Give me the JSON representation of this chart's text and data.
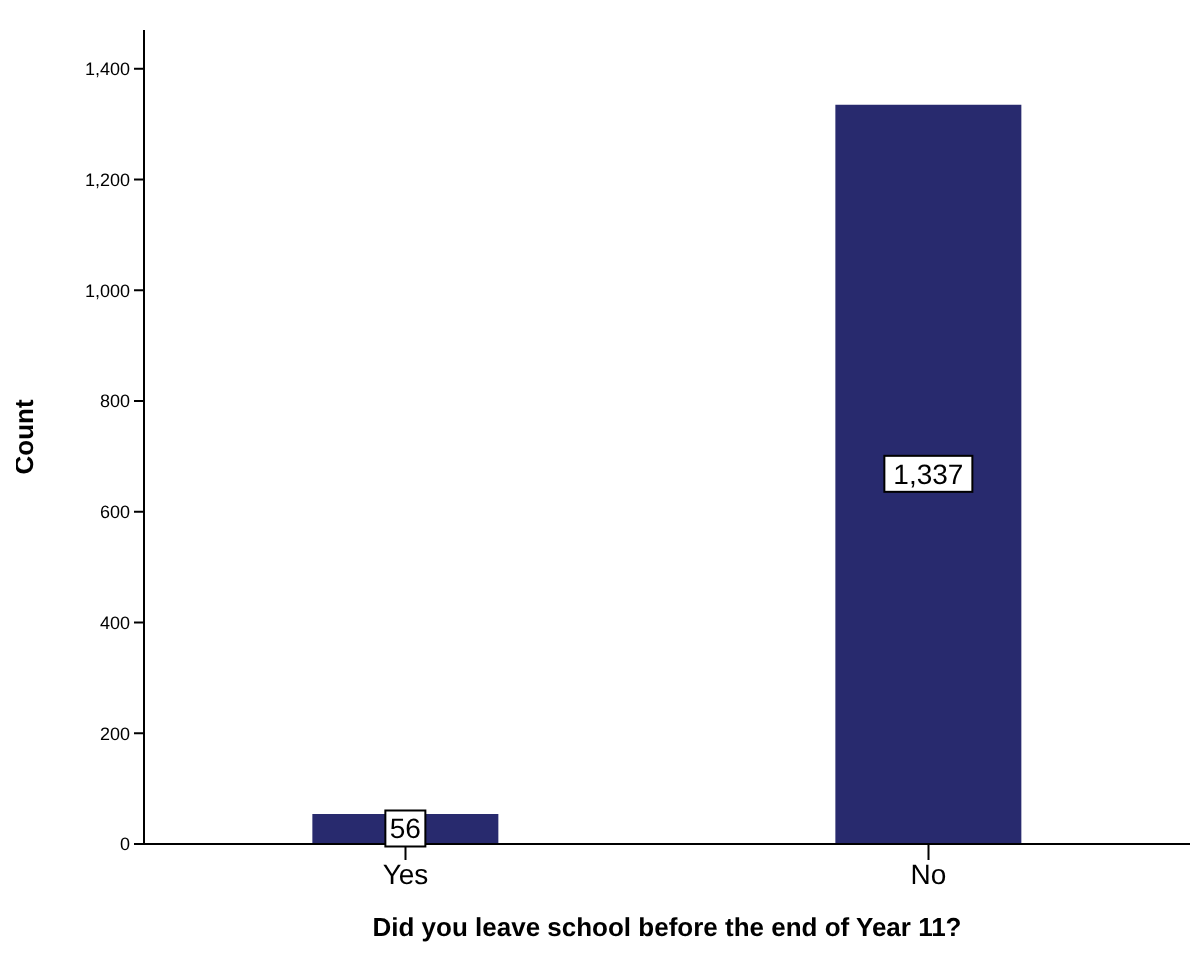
{
  "chart_data": {
    "type": "bar",
    "xlabel": "Did you leave school before the end of Year 11?",
    "ylabel": "Count",
    "categories": [
      "Yes",
      "No"
    ],
    "values": [
      56,
      1337
    ],
    "color": "#282a6e",
    "value_labels": [
      "56",
      "1,337"
    ],
    "ylim": [
      0,
      1470
    ],
    "yticks": [
      0,
      200,
      400,
      600,
      800,
      {
        "value": 1000,
        "label": "1,000"
      },
      {
        "value": 1200,
        "label": "1,200"
      },
      {
        "value": 1400,
        "label": "1,400"
      }
    ],
    "grid": false
  }
}
